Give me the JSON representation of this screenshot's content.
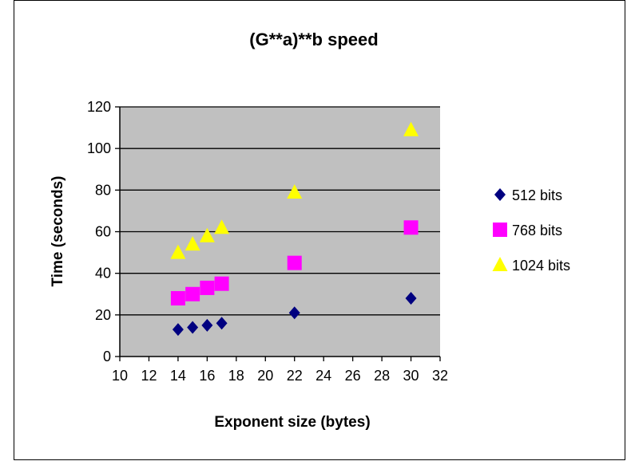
{
  "chart_data": {
    "type": "scatter",
    "title": "(G**a)**b speed",
    "xlabel": "Exponent size (bytes)",
    "ylabel": "Time (seconds)",
    "xlim": [
      10,
      32
    ],
    "ylim": [
      0,
      120
    ],
    "x_ticks": [
      "10",
      "12",
      "14",
      "16",
      "18",
      "20",
      "22",
      "24",
      "26",
      "28",
      "30",
      "32"
    ],
    "y_ticks": [
      "0",
      "20",
      "40",
      "60",
      "80",
      "100",
      "120"
    ],
    "grid": "horizontal",
    "legend_position": "right",
    "plot_background": "#c0c0c0",
    "series": [
      {
        "name": "512 bits",
        "marker": "diamond",
        "color": "#000080",
        "points": [
          [
            14,
            13
          ],
          [
            15,
            14
          ],
          [
            16,
            15
          ],
          [
            17,
            16
          ],
          [
            22,
            21
          ],
          [
            30,
            28
          ]
        ]
      },
      {
        "name": "768 bits",
        "marker": "square",
        "color": "#ff00ff",
        "points": [
          [
            14,
            28
          ],
          [
            15,
            30
          ],
          [
            16,
            33
          ],
          [
            17,
            35
          ],
          [
            22,
            45
          ],
          [
            30,
            62
          ]
        ]
      },
      {
        "name": "1024 bits",
        "marker": "triangle",
        "color": "#ffff00",
        "points": [
          [
            14,
            50
          ],
          [
            15,
            54
          ],
          [
            16,
            58
          ],
          [
            17,
            62
          ],
          [
            22,
            79
          ],
          [
            30,
            109
          ]
        ]
      }
    ]
  }
}
